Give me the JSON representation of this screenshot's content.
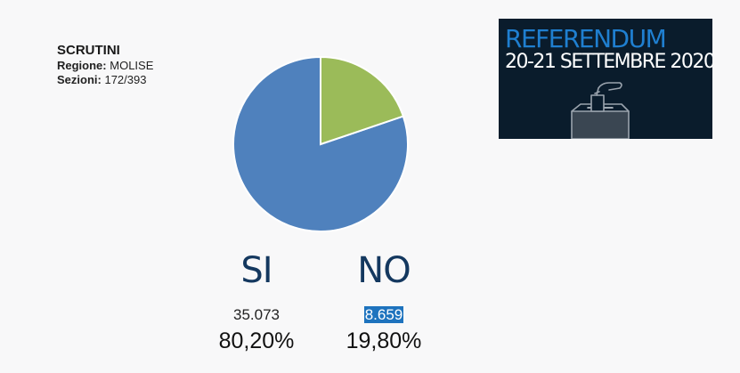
{
  "info": {
    "title": "SCRUTINI",
    "region_label": "Regione:",
    "region_value": "MOLISE",
    "sections_label": "Sezioni:",
    "sections_value": "172/393"
  },
  "banner": {
    "line1": "REFERENDUM",
    "line2": "20-21 SETTEMBRE 2020",
    "icon": "ballot-box-icon"
  },
  "results": [
    {
      "label": "SI",
      "votes": "35.073",
      "percent": "80,20%"
    },
    {
      "label": "NO",
      "votes": "8.659",
      "percent": "19,80%"
    }
  ],
  "chart_data": {
    "type": "pie",
    "categories": [
      "SI",
      "NO"
    ],
    "values": [
      80.2,
      19.8
    ],
    "colors": [
      "#4f81bd",
      "#9bbb59"
    ]
  }
}
